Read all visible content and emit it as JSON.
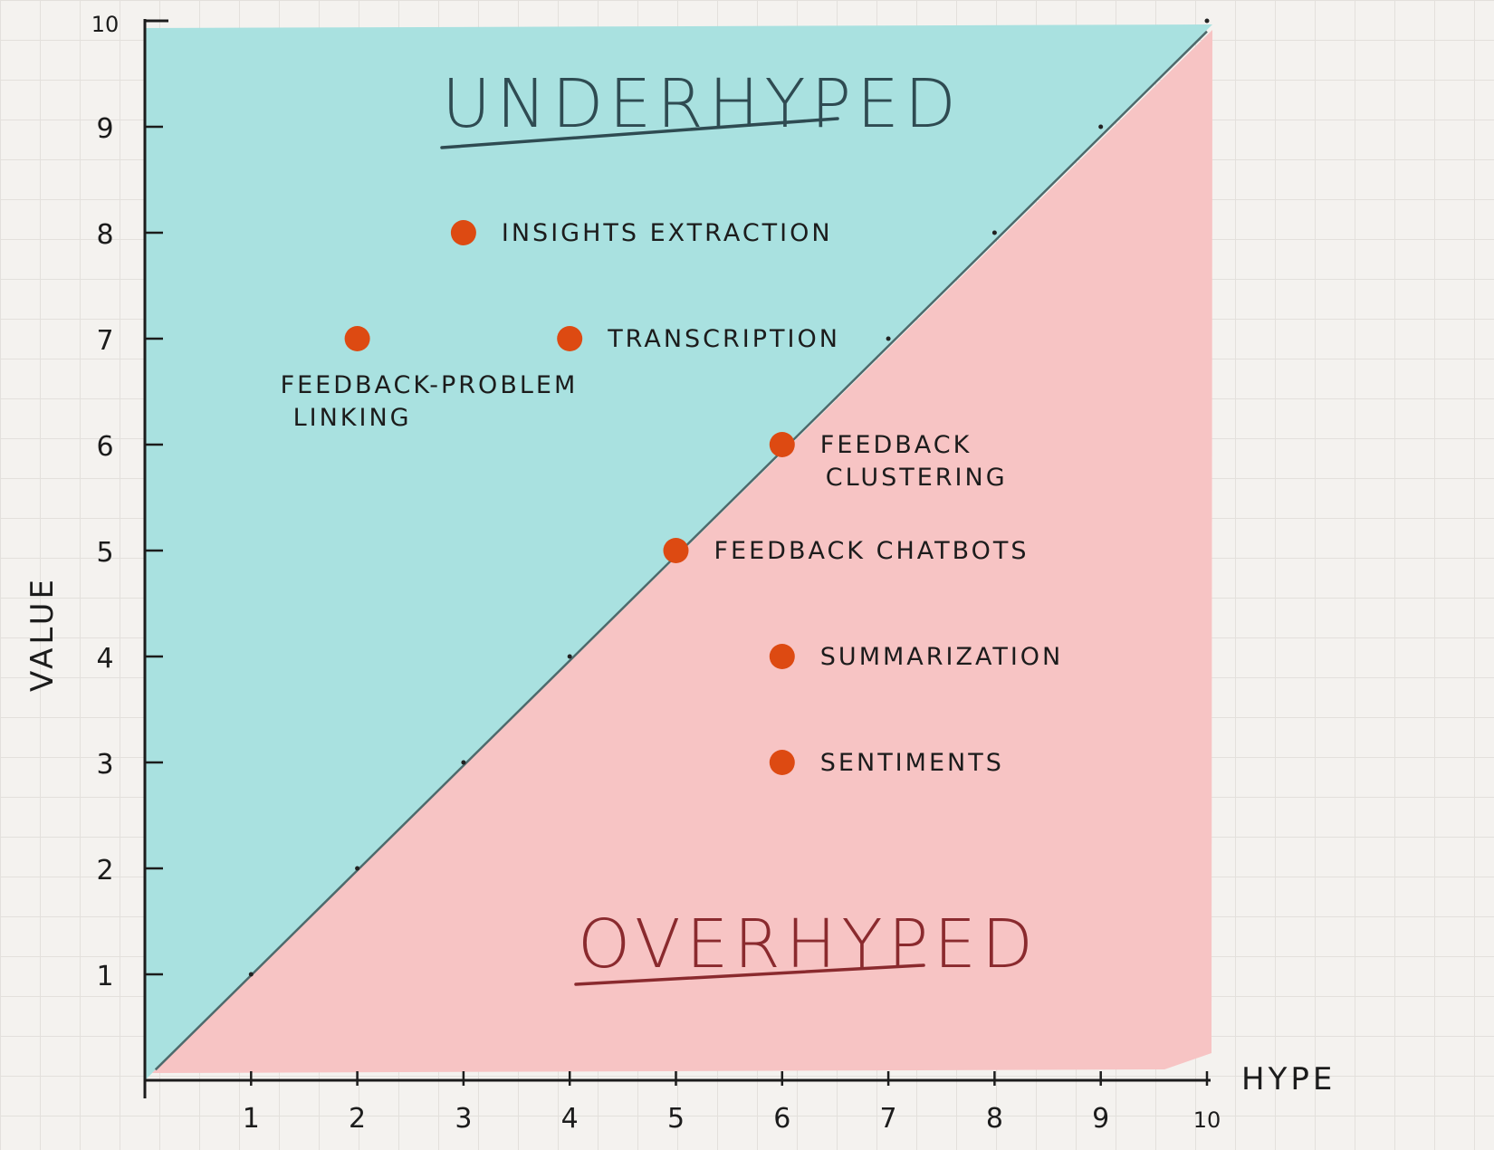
{
  "chart_data": {
    "type": "scatter",
    "xlabel": "HYPE",
    "ylabel": "VALUE",
    "xlim": [
      0,
      10
    ],
    "ylim": [
      0,
      10
    ],
    "x_ticks": [
      1,
      2,
      3,
      4,
      5,
      6,
      7,
      8,
      9,
      10
    ],
    "y_ticks": [
      1,
      2,
      3,
      4,
      5,
      6,
      7,
      8,
      9,
      10
    ],
    "regions": [
      {
        "label": "UNDERHYPED",
        "color": "#a9e1e0",
        "side": "above-diagonal"
      },
      {
        "label": "OVERHYPED",
        "color": "#f7c4c4",
        "side": "below-diagonal"
      }
    ],
    "diagonal": {
      "from": [
        0,
        0
      ],
      "to": [
        10,
        10
      ],
      "color": "#4d6a6c"
    },
    "point_color": "#dd4a12",
    "points": [
      {
        "x": 3,
        "y": 8,
        "label": [
          "INSIGHTS EXTRACTION"
        ]
      },
      {
        "x": 2,
        "y": 7,
        "label": [
          "FEEDBACK-PROBLEM",
          "LINKING"
        ]
      },
      {
        "x": 4,
        "y": 7,
        "label": [
          "TRANSCRIPTION"
        ]
      },
      {
        "x": 6,
        "y": 6,
        "label": [
          "FEEDBACK",
          "CLUSTERING"
        ]
      },
      {
        "x": 5,
        "y": 5,
        "label": [
          "FEEDBACK CHATBOTS"
        ]
      },
      {
        "x": 6,
        "y": 4,
        "label": [
          "SUMMARIZATION"
        ]
      },
      {
        "x": 6,
        "y": 3,
        "label": [
          "SENTIMENTS"
        ]
      }
    ]
  }
}
